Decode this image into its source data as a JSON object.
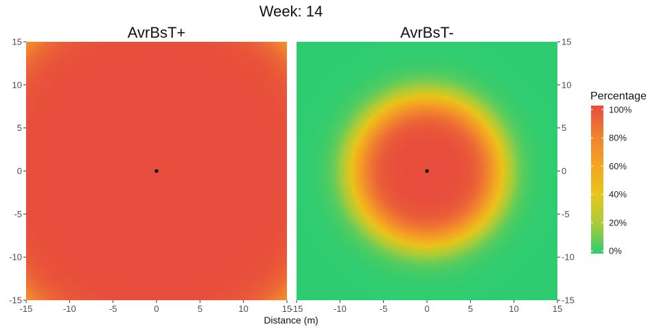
{
  "chart_data": {
    "type": "heatmap",
    "title": "Week: 14",
    "xlabel": "Distance (m)",
    "ylabel": "",
    "xlim": [
      -15,
      15
    ],
    "ylim": [
      -15,
      15
    ],
    "x_ticks": [
      -15,
      -10,
      -5,
      0,
      5,
      10,
      15
    ],
    "y_ticks": [
      -15,
      -10,
      -5,
      0,
      5,
      10,
      15
    ],
    "grid": false,
    "legend": {
      "title": "Percentage",
      "placement": "right",
      "stops": [
        {
          "value": 0,
          "label": "0%",
          "color": "#2ecc71"
        },
        {
          "value": 20,
          "label": "20%",
          "color": "#a8cc3a"
        },
        {
          "value": 40,
          "label": "40%",
          "color": "#e8c51a"
        },
        {
          "value": 60,
          "label": "60%",
          "color": "#f4a422"
        },
        {
          "value": 80,
          "label": "80%",
          "color": "#f08030"
        },
        {
          "value": 100,
          "label": "100%",
          "color": "#e74c3c"
        }
      ]
    },
    "panels": [
      {
        "title": "AvrBsT+",
        "y_axis_side": "left",
        "source_point": [
          0,
          0
        ],
        "field": {
          "model": "radial-logistic",
          "center": [
            0,
            0
          ],
          "radius": 22.5,
          "width": 1.6
        }
      },
      {
        "title": "AvrBsT-",
        "y_axis_side": "right",
        "source_point": [
          0,
          0
        ],
        "field": {
          "model": "radial-logistic",
          "center": [
            0,
            0
          ],
          "radius": 8.3,
          "width": 1.1
        }
      }
    ]
  }
}
